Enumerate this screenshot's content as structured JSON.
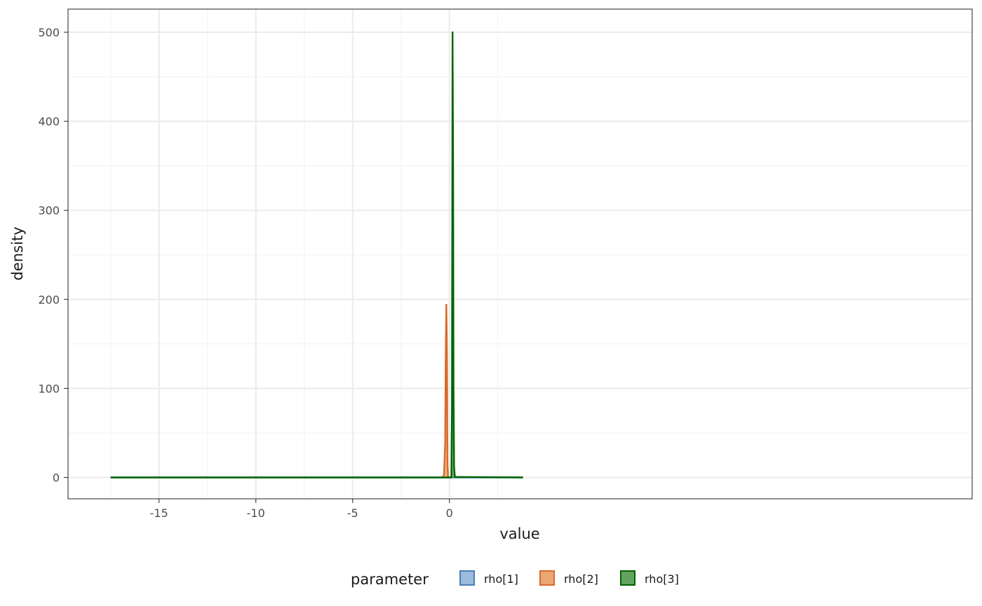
{
  "chart_data": {
    "type": "area",
    "xlabel": "value",
    "ylabel": "density",
    "xlim": [
      -19.7,
      27.0
    ],
    "ylim": [
      -24,
      526
    ],
    "x_ticks": [
      -15,
      -10,
      -5,
      0
    ],
    "x_tick_labels": [
      "-15",
      "-10",
      "-5",
      "0"
    ],
    "y_ticks": [
      0,
      100,
      200,
      300,
      400,
      500
    ],
    "y_tick_labels": [
      "0",
      "100",
      "200",
      "300",
      "400",
      "500"
    ],
    "grid": true,
    "legend": {
      "title": "parameter",
      "position": "bottom"
    },
    "series": [
      {
        "name": "rho[1]",
        "fill": "#9dbbdd",
        "stroke": "#4a7fb5",
        "x": [
          -17.5,
          -10.0,
          -5.0,
          0.0,
          3.8
        ],
        "y": [
          0.0,
          0.0,
          0.0,
          0.0,
          0.0
        ]
      },
      {
        "name": "rho[2]",
        "fill": "#eaa776",
        "stroke": "#d9692a",
        "x": [
          -0.35,
          -0.28,
          -0.22,
          -0.19,
          -0.16,
          -0.13,
          -0.1,
          -0.07
        ],
        "y": [
          0,
          3,
          40,
          140,
          194,
          140,
          15,
          0
        ]
      },
      {
        "name": "rho[3]",
        "fill": "#62a362",
        "stroke": "#006400",
        "x": [
          -17.5,
          0.0,
          0.1,
          0.13,
          0.16,
          0.19,
          0.21,
          0.24,
          0.28,
          0.4,
          3.8
        ],
        "y": [
          0,
          0,
          0,
          80,
          500,
          350,
          100,
          12,
          0.5,
          0.5,
          0
        ]
      }
    ]
  }
}
